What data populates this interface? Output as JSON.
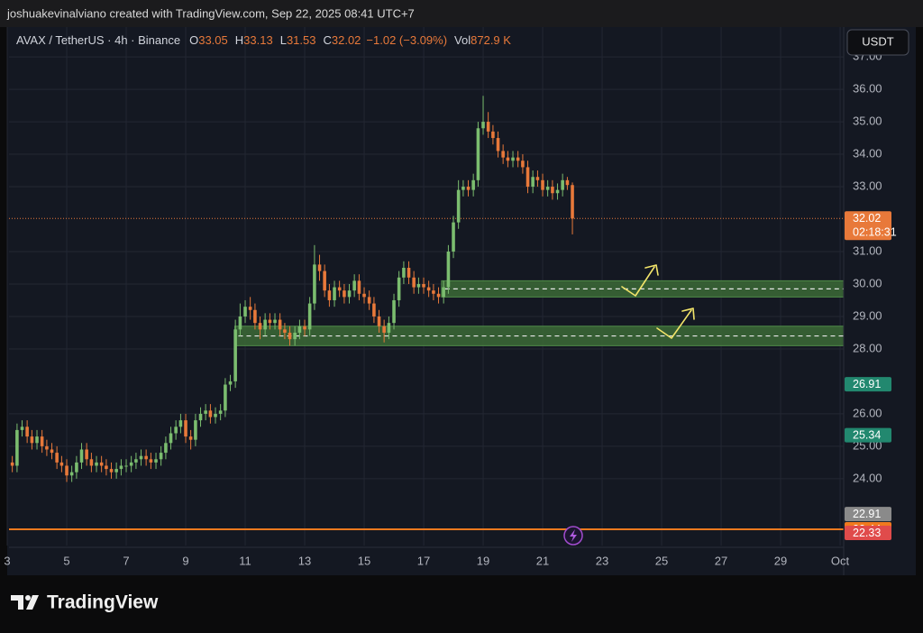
{
  "header": {
    "credit": "joshuakevinalviano created with TradingView.com, Sep 22, 2025 08:41 UTC+7",
    "brand": "TradingView"
  },
  "chart_data": {
    "type": "candlestick",
    "legend": {
      "symbol": "AVAX / TetherUS · 4h · Binance",
      "fields": [
        {
          "label": "O",
          "value": "33.05"
        },
        {
          "label": "H",
          "value": "33.13"
        },
        {
          "label": "L",
          "value": "31.53"
        },
        {
          "label": "C",
          "value": "32.02"
        }
      ],
      "change": "−1.02 (−3.09%)",
      "volume_label": "Vol",
      "volume": "872.9 K"
    },
    "currency": "USDT",
    "up_color": "#7bbd6f",
    "down_color": "#e8793a",
    "x": [
      3.17,
      3.33,
      3.5,
      3.67,
      3.83,
      4,
      4.17,
      4.33,
      4.5,
      4.67,
      4.83,
      5,
      5.17,
      5.33,
      5.5,
      5.67,
      5.83,
      6,
      6.17,
      6.33,
      6.5,
      6.67,
      6.83,
      7,
      7.17,
      7.33,
      7.5,
      7.67,
      7.83,
      8,
      8.17,
      8.33,
      8.5,
      8.67,
      8.83,
      9,
      9.17,
      9.33,
      9.5,
      9.67,
      9.83,
      10,
      10.17,
      10.33,
      10.5,
      10.67,
      10.83,
      11,
      11.17,
      11.33,
      11.5,
      11.67,
      11.83,
      12,
      12.17,
      12.33,
      12.5,
      12.67,
      12.83,
      13,
      13.17,
      13.33,
      13.5,
      13.67,
      13.83,
      14,
      14.17,
      14.33,
      14.5,
      14.67,
      14.83,
      15,
      15.17,
      15.33,
      15.5,
      15.67,
      15.83,
      16,
      16.17,
      16.33,
      16.5,
      16.67,
      16.83,
      17,
      17.17,
      17.33,
      17.5,
      17.67,
      17.83,
      18,
      18.17,
      18.33,
      18.5,
      18.67,
      18.83,
      19,
      19.17,
      19.33,
      19.5,
      19.67,
      19.83,
      20,
      20.17,
      20.33,
      20.5,
      20.67,
      20.83,
      21,
      21.17,
      21.33,
      21.5,
      21.67,
      21.83,
      22
    ],
    "open": [
      24.5,
      24.4,
      25.5,
      25.6,
      25.3,
      25.1,
      25.3,
      25.0,
      24.9,
      24.8,
      24.5,
      24.4,
      24.1,
      24.2,
      24.5,
      24.9,
      24.6,
      24.4,
      24.5,
      24.4,
      24.3,
      24.2,
      24.3,
      24.4,
      24.4,
      24.5,
      24.6,
      24.7,
      24.6,
      24.5,
      24.6,
      24.8,
      25.1,
      25.4,
      25.6,
      25.8,
      25.3,
      25.2,
      25.8,
      26.0,
      26.1,
      25.9,
      26.0,
      26.1,
      26.9,
      27.0,
      28.6,
      29.0,
      29.3,
      29.2,
      28.8,
      28.6,
      28.9,
      28.8,
      28.9,
      28.6,
      28.5,
      28.3,
      28.5,
      28.7,
      28.6,
      29.4,
      30.6,
      30.4,
      29.8,
      29.5,
      29.9,
      29.8,
      29.6,
      29.8,
      30.1,
      29.7,
      29.6,
      29.4,
      29.0,
      28.7,
      28.5,
      28.8,
      29.5,
      30.2,
      30.5,
      30.2,
      29.9,
      30.0,
      29.9,
      29.8,
      29.7,
      29.6,
      29.9,
      31.0,
      31.9,
      32.9,
      33.0,
      32.9,
      33.2,
      34.8,
      35.0,
      34.7,
      34.5,
      34.1,
      33.9,
      33.8,
      33.9,
      33.8,
      33.6,
      33.0,
      33.3,
      33.2,
      32.9,
      33.0,
      32.8,
      32.9,
      33.2,
      33.05
    ],
    "high": [
      24.7,
      25.7,
      25.8,
      25.8,
      25.5,
      25.5,
      25.5,
      25.2,
      25.1,
      25.0,
      24.7,
      24.6,
      24.4,
      24.7,
      25.1,
      25.1,
      24.8,
      24.7,
      24.7,
      24.6,
      24.5,
      24.5,
      24.6,
      24.6,
      24.7,
      24.8,
      24.9,
      24.9,
      24.8,
      24.8,
      25.0,
      25.3,
      25.6,
      25.8,
      26.0,
      26.0,
      25.5,
      26.0,
      26.2,
      26.3,
      26.3,
      26.2,
      26.3,
      27.1,
      27.2,
      28.9,
      29.4,
      29.5,
      29.6,
      29.4,
      29.0,
      29.1,
      29.1,
      29.1,
      29.1,
      28.8,
      28.7,
      28.7,
      28.9,
      28.9,
      29.6,
      31.2,
      30.9,
      30.6,
      30.0,
      30.1,
      30.1,
      30.0,
      30.0,
      30.3,
      30.3,
      29.9,
      29.8,
      29.6,
      29.2,
      28.9,
      29.0,
      29.7,
      30.4,
      30.7,
      30.7,
      30.4,
      30.2,
      30.2,
      30.1,
      30.0,
      29.9,
      30.1,
      31.2,
      32.1,
      33.2,
      33.2,
      33.2,
      33.4,
      35.0,
      35.8,
      35.3,
      34.9,
      34.7,
      34.3,
      34.1,
      34.1,
      34.1,
      34.0,
      33.8,
      33.5,
      33.5,
      33.4,
      33.2,
      33.2,
      33.1,
      33.4,
      33.3,
      33.13
    ],
    "low": [
      24.2,
      24.2,
      25.3,
      25.1,
      24.9,
      24.9,
      24.8,
      24.7,
      24.6,
      24.3,
      24.2,
      23.9,
      23.9,
      24.0,
      24.3,
      24.4,
      24.2,
      24.2,
      24.2,
      24.1,
      24.0,
      24.0,
      24.1,
      24.2,
      24.2,
      24.3,
      24.4,
      24.4,
      24.3,
      24.3,
      24.4,
      24.6,
      24.9,
      25.2,
      25.4,
      25.1,
      24.9,
      25.0,
      25.6,
      25.8,
      25.7,
      25.7,
      25.8,
      25.9,
      26.7,
      26.8,
      28.4,
      28.8,
      28.9,
      28.6,
      28.3,
      28.4,
      28.6,
      28.6,
      28.4,
      28.3,
      28.1,
      28.1,
      28.3,
      28.4,
      28.4,
      29.2,
      30.1,
      29.6,
      29.3,
      29.3,
      29.6,
      29.4,
      29.4,
      29.6,
      29.5,
      29.4,
      29.2,
      28.8,
      28.5,
      28.2,
      28.3,
      28.6,
      29.3,
      30.0,
      30.0,
      29.7,
      29.7,
      29.7,
      29.6,
      29.5,
      29.4,
      29.4,
      29.7,
      30.8,
      31.7,
      32.7,
      32.7,
      32.7,
      33.0,
      34.6,
      34.5,
      34.3,
      33.9,
      33.7,
      33.6,
      33.6,
      33.6,
      33.4,
      32.8,
      32.8,
      33.0,
      32.7,
      32.7,
      32.6,
      32.6,
      32.7,
      32.9,
      31.53
    ],
    "close": [
      24.4,
      25.5,
      25.6,
      25.3,
      25.1,
      25.3,
      25.0,
      24.9,
      24.8,
      24.5,
      24.4,
      24.1,
      24.2,
      24.5,
      24.9,
      24.6,
      24.4,
      24.5,
      24.4,
      24.3,
      24.2,
      24.3,
      24.4,
      24.4,
      24.5,
      24.6,
      24.7,
      24.6,
      24.5,
      24.6,
      24.8,
      25.1,
      25.4,
      25.6,
      25.8,
      25.3,
      25.2,
      25.8,
      26.0,
      26.1,
      25.9,
      26.0,
      26.1,
      26.9,
      27.0,
      28.6,
      29.0,
      29.3,
      29.2,
      28.8,
      28.6,
      28.9,
      28.8,
      28.9,
      28.6,
      28.5,
      28.3,
      28.5,
      28.7,
      28.6,
      29.4,
      30.6,
      30.4,
      29.8,
      29.5,
      29.9,
      29.8,
      29.6,
      29.8,
      30.1,
      29.7,
      29.6,
      29.4,
      29.0,
      28.7,
      28.5,
      28.8,
      29.5,
      30.2,
      30.5,
      30.2,
      29.9,
      30.0,
      29.9,
      29.8,
      29.7,
      29.6,
      29.9,
      31.0,
      31.9,
      32.9,
      33.0,
      32.9,
      33.2,
      34.8,
      35.0,
      34.7,
      34.5,
      34.1,
      33.9,
      33.8,
      33.9,
      33.8,
      33.6,
      33.0,
      33.3,
      33.2,
      32.9,
      33.0,
      32.8,
      32.9,
      33.2,
      33.05,
      32.02
    ],
    "zones": [
      {
        "low": 29.6,
        "high": 30.1,
        "start": 17.6
      },
      {
        "low": 28.1,
        "high": 28.7,
        "start": 10.65
      }
    ],
    "price_labels": [
      {
        "value": 32.02,
        "color": "#e8793a",
        "line": "dotted"
      },
      {
        "value": 26.91,
        "color": "#22886f"
      },
      {
        "value": 25.34,
        "color": "#22886f"
      },
      {
        "value": 22.91,
        "color": "#8a8a8a"
      },
      {
        "value": 22.44,
        "color": "#f0791e",
        "line": "solid"
      },
      {
        "value": 22.33,
        "color": "#e04b4b"
      }
    ],
    "countdown": "02:18:31",
    "xlim": [
      3.06,
      31.12
    ],
    "ylim": [
      21.94,
      37.92
    ],
    "xticks": [
      3,
      5,
      7,
      9,
      11,
      13,
      15,
      17,
      19,
      21,
      23,
      25,
      27,
      29,
      {
        "value": 31,
        "label": "Oct"
      }
    ],
    "yticks": [
      {
        "value": 24,
        "label": "24.00"
      },
      {
        "value": 25,
        "label": "25.00"
      },
      {
        "value": 26,
        "label": "26.00"
      },
      {
        "value": 28,
        "label": "28.00"
      },
      {
        "value": 29,
        "label": "29.00"
      },
      {
        "value": 30,
        "label": "30.00"
      },
      {
        "value": 31,
        "label": "31.00"
      },
      {
        "value": 33,
        "label": "33.00"
      },
      {
        "value": 34,
        "label": "34.00"
      },
      {
        "value": 35,
        "label": "35.00"
      },
      {
        "value": 36,
        "label": "36.00"
      },
      {
        "value": 37,
        "label": "37.00"
      }
    ],
    "grid": true
  }
}
